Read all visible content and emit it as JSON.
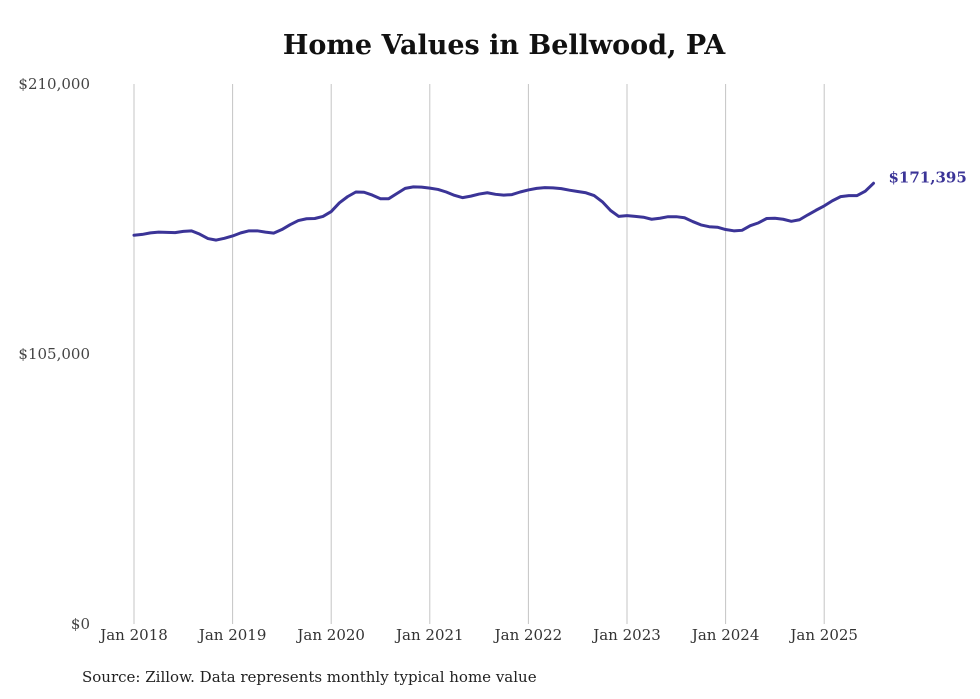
{
  "chart_data": {
    "type": "line",
    "title": "Home Values in Bellwood, PA",
    "source": "Source: Zillow. Data represents monthly typical home value",
    "ylim": [
      0,
      210000
    ],
    "y_ticks": [
      {
        "value": 0,
        "label": "$0"
      },
      {
        "value": 105000,
        "label": "$105,000"
      },
      {
        "value": 210000,
        "label": "$210,000"
      }
    ],
    "x_ticks": [
      {
        "value": "2018-01",
        "label": "Jan 2018"
      },
      {
        "value": "2019-01",
        "label": "Jan 2019"
      },
      {
        "value": "2020-01",
        "label": "Jan 2020"
      },
      {
        "value": "2021-01",
        "label": "Jan 2021"
      },
      {
        "value": "2022-01",
        "label": "Jan 2022"
      },
      {
        "value": "2023-01",
        "label": "Jan 2023"
      },
      {
        "value": "2024-01",
        "label": "Jan 2024"
      },
      {
        "value": "2025-01",
        "label": "Jan 2025"
      }
    ],
    "grid": "vertical",
    "line_color": "#3b3497",
    "end_label": "$171,395",
    "series": [
      {
        "x": [
          "2018-01",
          "2018-02",
          "2018-03",
          "2018-04",
          "2018-05",
          "2018-06",
          "2018-07",
          "2018-08",
          "2018-09",
          "2018-10",
          "2018-11",
          "2018-12",
          "2019-01",
          "2019-02",
          "2019-03",
          "2019-04",
          "2019-05",
          "2019-06",
          "2019-07",
          "2019-08",
          "2019-09",
          "2019-10",
          "2019-11",
          "2019-12",
          "2020-01",
          "2020-02",
          "2020-03",
          "2020-04",
          "2020-05",
          "2020-06",
          "2020-07",
          "2020-08",
          "2020-09",
          "2020-10",
          "2020-11",
          "2020-12",
          "2021-01",
          "2021-02",
          "2021-03",
          "2021-04",
          "2021-05",
          "2021-06",
          "2021-07",
          "2021-08",
          "2021-09",
          "2021-10",
          "2021-11",
          "2021-12",
          "2022-01",
          "2022-02",
          "2022-03",
          "2022-04",
          "2022-05",
          "2022-06",
          "2022-07",
          "2022-08",
          "2022-09",
          "2022-10",
          "2022-11",
          "2022-12",
          "2023-01",
          "2023-02",
          "2023-03",
          "2023-04",
          "2023-05",
          "2023-06",
          "2023-07",
          "2023-08",
          "2023-09",
          "2023-10",
          "2023-11",
          "2023-12",
          "2024-01",
          "2024-02",
          "2024-03",
          "2024-04",
          "2024-05",
          "2024-06",
          "2024-07",
          "2024-08",
          "2024-09",
          "2024-10",
          "2024-11",
          "2024-12",
          "2025-01",
          "2025-02",
          "2025-03",
          "2025-04",
          "2025-05",
          "2025-06",
          "2025-07"
        ],
        "values": [
          151200,
          151500,
          152100,
          152400,
          152300,
          152200,
          152700,
          152900,
          151600,
          149900,
          149300,
          150000,
          150900,
          152100,
          152900,
          152900,
          152400,
          152000,
          153400,
          155300,
          156900,
          157600,
          157700,
          158500,
          160400,
          163800,
          166200,
          168000,
          167900,
          166800,
          165400,
          165400,
          167400,
          169400,
          170000,
          169900,
          169500,
          169000,
          168000,
          166700,
          165800,
          166400,
          167200,
          167700,
          167100,
          166800,
          167000,
          168000,
          168800,
          169400,
          169700,
          169600,
          169300,
          168700,
          168200,
          167700,
          166600,
          164200,
          160800,
          158500,
          158800,
          158500,
          158200,
          157400,
          157800,
          158400,
          158400,
          158000,
          156500,
          155200,
          154500,
          154300,
          153400,
          152900,
          153100,
          154900,
          156000,
          157700,
          157800,
          157400,
          156600,
          157200,
          159100,
          160900,
          162600,
          164600,
          166200,
          166600,
          166600,
          168300,
          171395
        ]
      }
    ]
  }
}
